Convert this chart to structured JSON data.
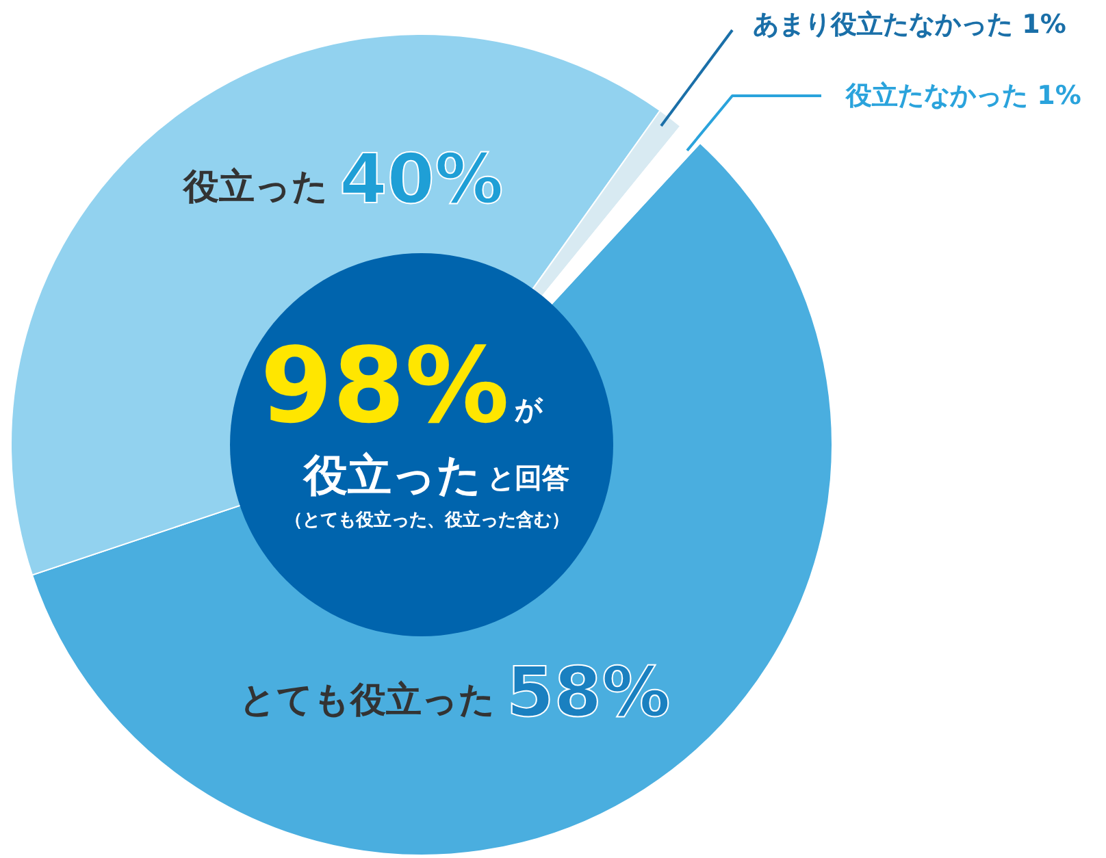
{
  "chart_data": {
    "type": "donut",
    "categories": [
      "とても役立った",
      "役立った",
      "あまり役立たなかった",
      "役立たなかった"
    ],
    "values": [
      58,
      40,
      1,
      1
    ],
    "colors": [
      "#4aaedf",
      "#92d2ef",
      "#d8eaf2",
      "#ffffff"
    ],
    "value_labels": [
      "58%",
      "40%",
      "1%",
      "1%"
    ],
    "annotations": [
      "98%",
      "が",
      "役立った",
      "と回答",
      "（とても役立った、役立った含む）"
    ]
  }
}
